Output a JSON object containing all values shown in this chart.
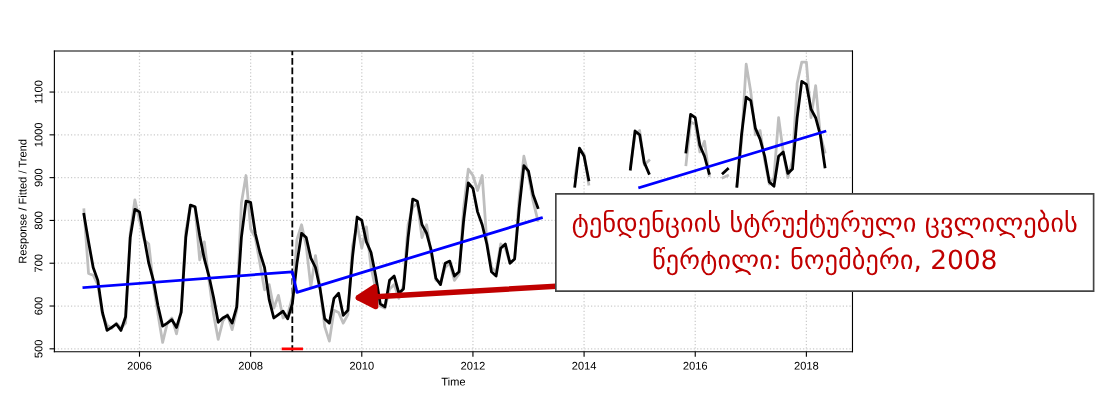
{
  "chart_data": {
    "type": "line",
    "xlabel": "Time",
    "ylabel": "Response / Fitted / Trend",
    "x": [
      "2005-01",
      "2005-02",
      "2005-03",
      "2005-04",
      "2005-05",
      "2005-06",
      "2005-07",
      "2005-08",
      "2005-09",
      "2005-10",
      "2005-11",
      "2005-12",
      "2006-01",
      "2006-02",
      "2006-03",
      "2006-04",
      "2006-05",
      "2006-06",
      "2006-07",
      "2006-08",
      "2006-09",
      "2006-10",
      "2006-11",
      "2006-12",
      "2007-01",
      "2007-02",
      "2007-03",
      "2007-04",
      "2007-05",
      "2007-06",
      "2007-07",
      "2007-08",
      "2007-09",
      "2007-10",
      "2007-11",
      "2007-12",
      "2008-01",
      "2008-02",
      "2008-03",
      "2008-04",
      "2008-05",
      "2008-06",
      "2008-07",
      "2008-08",
      "2008-09",
      "2008-10",
      "2008-11",
      "2008-12",
      "2009-01",
      "2009-02",
      "2009-03",
      "2009-04",
      "2009-05",
      "2009-06",
      "2009-07",
      "2009-08",
      "2009-09",
      "2009-10",
      "2009-11",
      "2009-12",
      "2010-01",
      "2010-02",
      "2010-03",
      "2010-04",
      "2010-05",
      "2010-06",
      "2010-07",
      "2010-08",
      "2010-09",
      "2010-10",
      "2010-11",
      "2010-12",
      "2011-01",
      "2011-02",
      "2011-03",
      "2011-04",
      "2011-05",
      "2011-06",
      "2011-07",
      "2011-08",
      "2011-09",
      "2011-10",
      "2011-11",
      "2011-12",
      "2012-01",
      "2012-02",
      "2012-03",
      "2012-04",
      "2012-05",
      "2012-06",
      "2012-07",
      "2012-08",
      "2012-09",
      "2012-10",
      "2012-11",
      "2012-12",
      "2013-01",
      "2013-02",
      "2013-03",
      "2013-04",
      "2013-05",
      "2013-06",
      "2013-07",
      "2013-08",
      "2013-09",
      "2013-10",
      "2013-11",
      "2013-12",
      "2014-01",
      "2014-02",
      "2014-03",
      "2014-04",
      "2014-05",
      "2014-06",
      "2014-07",
      "2014-08",
      "2014-09",
      "2014-10",
      "2014-11",
      "2014-12",
      "2015-01",
      "2015-02",
      "2015-03",
      "2015-04",
      "2015-05",
      "2015-06",
      "2015-07",
      "2015-08",
      "2015-09",
      "2015-10",
      "2015-11",
      "2015-12",
      "2016-01",
      "2016-02",
      "2016-03",
      "2016-04",
      "2016-05",
      "2016-06",
      "2016-07",
      "2016-08",
      "2016-09",
      "2016-10",
      "2016-11",
      "2016-12",
      "2017-01",
      "2017-02",
      "2017-03",
      "2017-04",
      "2017-05",
      "2017-06",
      "2017-07",
      "2017-08",
      "2017-09",
      "2017-10",
      "2017-11",
      "2017-12",
      "2018-01",
      "2018-02",
      "2018-03",
      "2018-04",
      "2018-05"
    ],
    "series": [
      {
        "color": "#bebebe",
        "values": [
          825,
          676,
          672,
          650,
          580,
          555,
          548,
          560,
          548,
          560,
          770,
          848,
          800,
          755,
          745,
          650,
          580,
          515,
          560,
          572,
          535,
          590,
          775,
          835,
          830,
          708,
          750,
          660,
          580,
          522,
          565,
          580,
          545,
          590,
          840,
          905,
          780,
          760,
          700,
          638,
          650,
          595,
          625,
          572,
          580,
          620,
          755,
          790,
          740,
          645,
          718,
          640,
          552,
          518,
          590,
          585,
          560,
          580,
          740,
          790,
          735,
          785,
          690,
          640,
          600,
          595,
          640,
          650,
          618,
          648,
          790,
          830,
          840,
          760,
          790,
          720,
          660,
          655,
          690,
          700,
          660,
          675,
          830,
          920,
          905,
          870,
          905,
          750,
          690,
          680,
          745,
          735,
          700,
          710,
          855,
          950,
          905,
          845,
          800,
          null,
          null,
          null,
          null,
          null,
          null,
          null,
          900,
          968,
          955,
          885,
          null,
          null,
          null,
          null,
          null,
          null,
          null,
          null,
          925,
          1000,
          1010,
          930,
          940,
          null,
          null,
          null,
          null,
          null,
          null,
          null,
          930,
          1030,
          1025,
          960,
          985,
          905,
          null,
          null,
          900,
          905,
          null,
          880,
          985,
          1165,
          1100,
          1000,
          1010,
          940,
          885,
          900,
          1040,
          960,
          900,
          940,
          1120,
          1170,
          1170,
          1040,
          1115,
          1000,
          960
        ]
      },
      {
        "color": "#000000",
        "values": [
          814,
          750,
          690,
          660,
          585,
          543,
          550,
          558,
          543,
          575,
          760,
          826,
          820,
          760,
          700,
          660,
          600,
          553,
          560,
          568,
          550,
          585,
          760,
          836,
          832,
          765,
          710,
          670,
          620,
          562,
          572,
          578,
          560,
          598,
          760,
          845,
          842,
          770,
          725,
          690,
          615,
          572,
          580,
          588,
          570,
          605,
          700,
          770,
          760,
          712,
          690,
          640,
          570,
          560,
          618,
          630,
          578,
          590,
          715,
          808,
          800,
          750,
          725,
          670,
          605,
          598,
          660,
          670,
          630,
          640,
          760,
          850,
          845,
          790,
          770,
          730,
          665,
          650,
          700,
          705,
          670,
          680,
          800,
          888,
          875,
          820,
          790,
          745,
          680,
          670,
          735,
          745,
          700,
          710,
          830,
          928,
          915,
          860,
          830,
          null,
          null,
          null,
          null,
          null,
          null,
          null,
          880,
          969,
          950,
          895,
          null,
          null,
          null,
          null,
          null,
          null,
          null,
          null,
          920,
          1009,
          1000,
          935,
          910,
          null,
          null,
          null,
          null,
          null,
          null,
          null,
          960,
          1048,
          1040,
          975,
          950,
          910,
          null,
          null,
          910,
          920,
          null,
          880,
          1000,
          1088,
          1080,
          1015,
          990,
          950,
          890,
          880,
          950,
          960,
          910,
          920,
          1040,
          1125,
          1118,
          1060,
          1040,
          1000,
          925
        ]
      },
      {
        "color": "#0000ff",
        "x": [
          "2005-01",
          "2008-10",
          "2008-11",
          "2013-03-25",
          "2014-01",
          "2015-01",
          "2018-05"
        ],
        "values": [
          643,
          680,
          632,
          806,
          null,
          877,
          1008
        ]
      },
      {
        "color": "#ff0000",
        "x": [
          "2008-08",
          "2008-12"
        ],
        "values": [
          500,
          500
        ]
      }
    ],
    "xlim": [
      "2004-06-20",
      "2018-10-30"
    ],
    "xticks": [
      "2006",
      "2008",
      "2010",
      "2012",
      "2014",
      "2016",
      "2018"
    ],
    "ylim": [
      493,
      1196
    ],
    "yticks": [
      500,
      600,
      700,
      800,
      900,
      1000,
      1100
    ],
    "ref_lines": [
      {
        "axis": "x",
        "value": "2008-10",
        "color": "#000000",
        "line_style": "dashed"
      }
    ],
    "annotations": [
      "ტენდენციის სტრუქტურული ცვლილების\nწერტილი: ნოემბერი, 2008"
    ],
    "grid": true,
    "legend": false,
    "line_style": "solid",
    "marker": "none"
  }
}
